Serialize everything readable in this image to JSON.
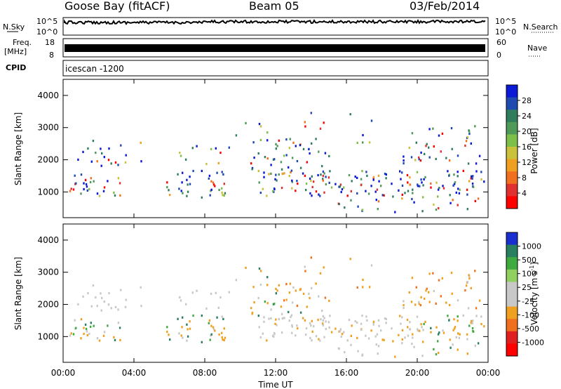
{
  "header": {
    "station": "Goose Bay (fitACF)",
    "beam": "Beam 05",
    "date": "03/Feb/2014"
  },
  "strips": {
    "nsky_label": "N.Sky",
    "nsky_ticks": [
      "10^5",
      "10^0"
    ],
    "nsearch_label": "N.Search",
    "nsearch_ticks": [
      "10^5",
      "10^0"
    ],
    "freq_label": "Freq.",
    "freq_unit": "[MHz]",
    "freq_ticks": [
      "18",
      "8"
    ],
    "nave_label": "Nave",
    "nave_ticks": [
      "60",
      "0"
    ],
    "cpid_label": "CPID",
    "cpid_value": "icescan -1200"
  },
  "chart_data": [
    {
      "type": "heatmap",
      "panel": "power",
      "ylabel": "Slant Range [km]",
      "xlabel": "Time UT",
      "x_ticks": [
        "00:00",
        "04:00",
        "08:00",
        "12:00",
        "16:00",
        "20:00",
        "00:00"
      ],
      "xlim_hours": [
        0,
        24
      ],
      "y_ticks": [
        1000,
        2000,
        3000,
        4000
      ],
      "ylim": [
        200,
        4500
      ],
      "colorbar_label": "Power [dB]",
      "colorbar_ticks": [
        "4",
        "8",
        "12",
        "16",
        "20",
        "24",
        "28"
      ],
      "colorbar_colors": [
        "#0a1ad6",
        "#1f4ab0",
        "#2f7d5c",
        "#4f9a58",
        "#7cbf4a",
        "#c9c23a",
        "#f0a020",
        "#f07020",
        "#e03030",
        "#ff0000"
      ]
    },
    {
      "type": "heatmap",
      "panel": "velocity",
      "ylabel": "Slant Range [km]",
      "xlabel": "Time UT",
      "x_ticks": [
        "00:00",
        "04:00",
        "08:00",
        "12:00",
        "16:00",
        "20:00",
        "00:00"
      ],
      "xlim_hours": [
        0,
        24
      ],
      "y_ticks": [
        1000,
        2000,
        3000,
        4000
      ],
      "ylim": [
        200,
        4500
      ],
      "colorbar_label": "Velocity [m s",
      "colorbar_label_sup": "-1",
      "colorbar_label_end": "]",
      "colorbar_ticks": [
        "1000",
        "500",
        "100",
        "25",
        "-25",
        "-100",
        "-500",
        "-1000"
      ],
      "colorbar_colors": [
        "#1a2fd0",
        "#2a7f60",
        "#3faa3f",
        "#8fd060",
        "#c8c8c8",
        "#c8c8c8",
        "#f0a020",
        "#f07020",
        "#e02020",
        "#ff0000"
      ]
    }
  ]
}
